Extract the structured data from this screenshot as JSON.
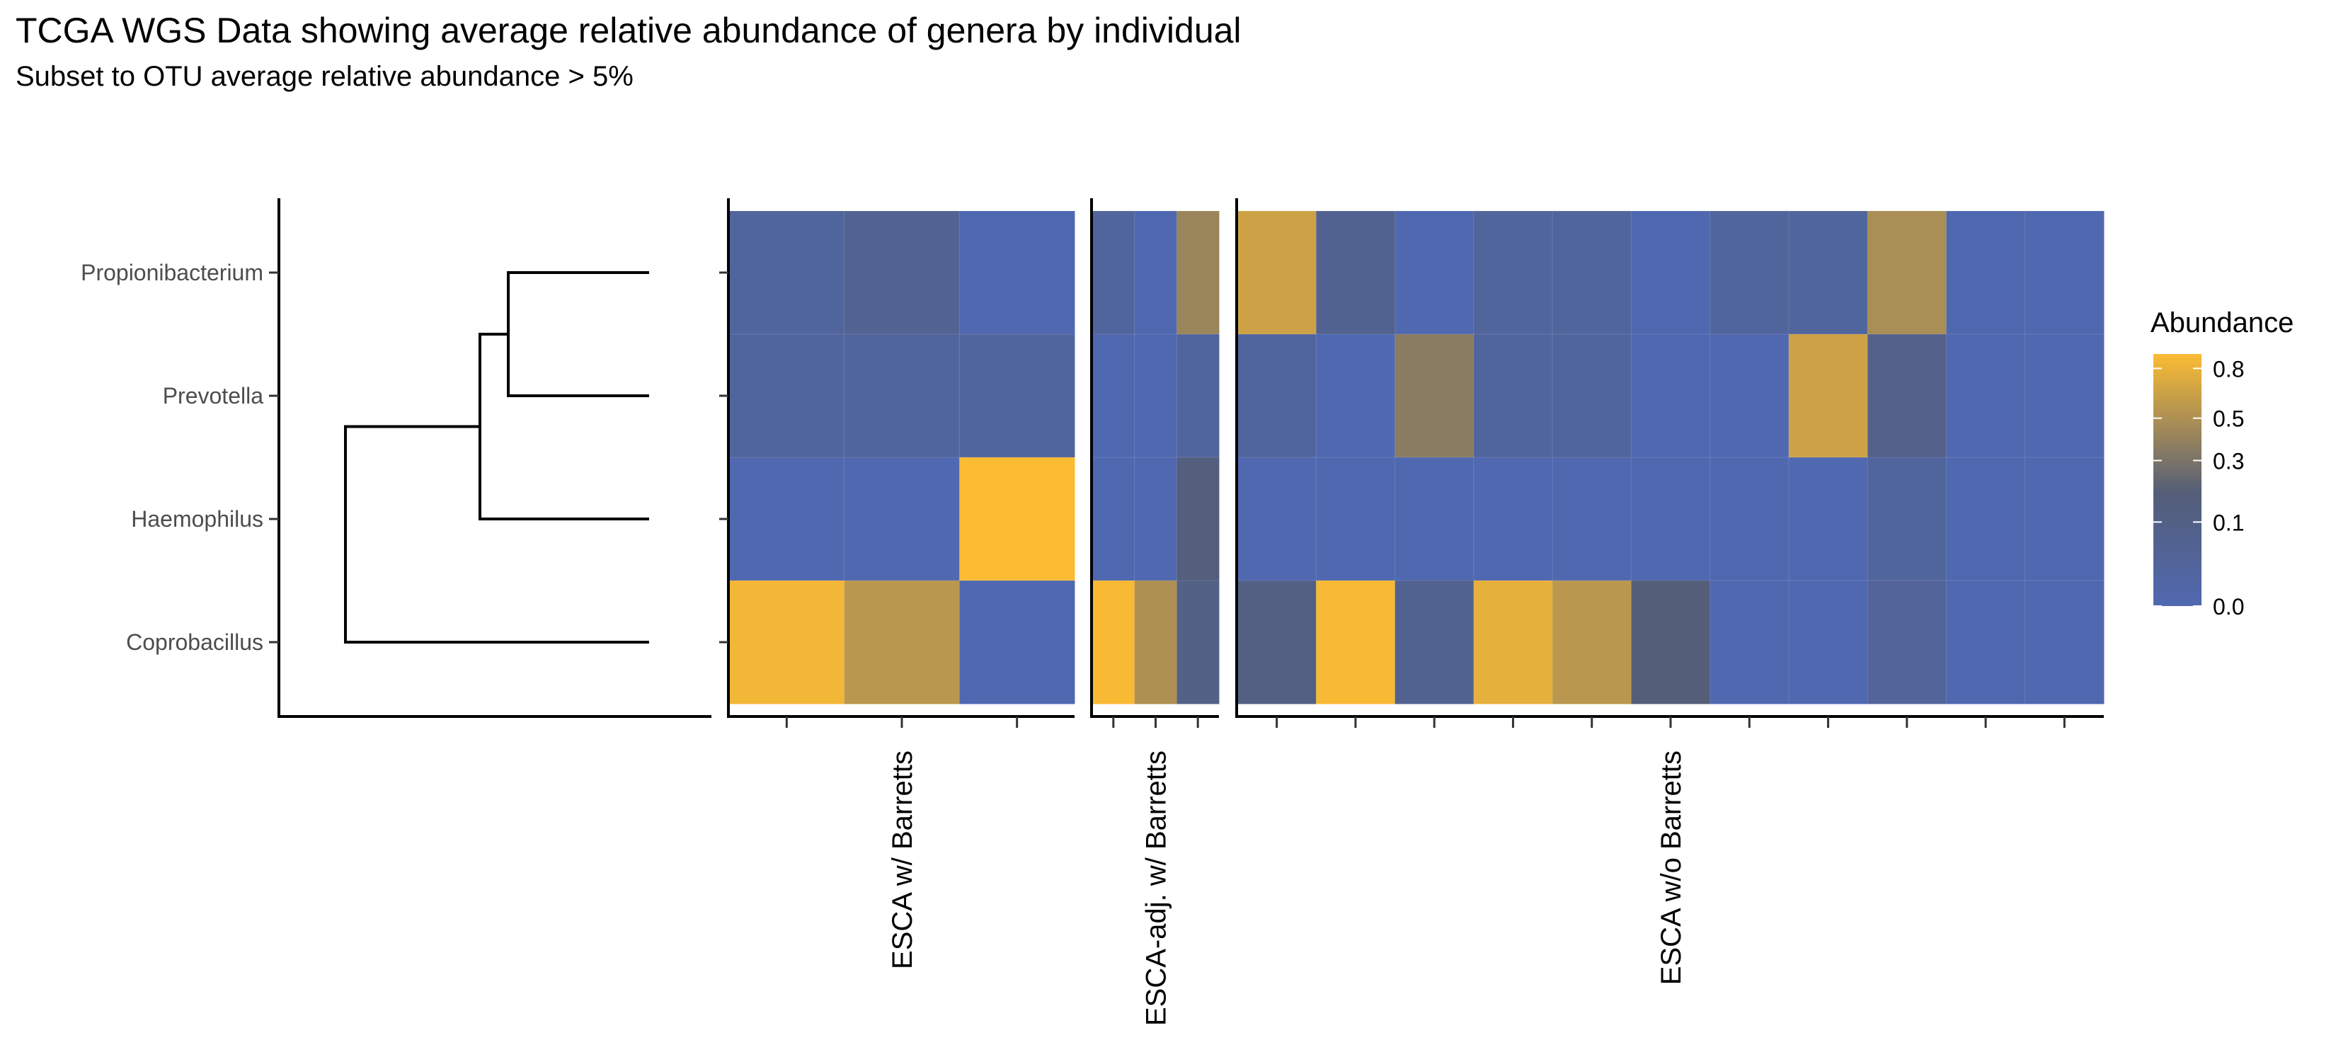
{
  "chart_data": {
    "type": "heatmap",
    "title": "TCGA WGS Data showing average relative abundance of genera by individual",
    "subtitle": "Subset to OTU average relative abundance > 5%",
    "rows": [
      "Propionibacterium",
      "Prevotella",
      "Haemophilus",
      "Coprobacillus"
    ],
    "facets": [
      {
        "label": "ESCA w/ Barretts",
        "values": [
          [
            0.02,
            0.05,
            0.0
          ],
          [
            0.02,
            0.02,
            0.02
          ],
          [
            0.0,
            0.0,
            0.9
          ],
          [
            0.85,
            0.55,
            0.0
          ]
        ]
      },
      {
        "label": "ESCA-adj. w/ Barretts",
        "values": [
          [
            0.02,
            0.0,
            0.42
          ],
          [
            0.0,
            0.0,
            0.02
          ],
          [
            0.0,
            0.0,
            0.15
          ],
          [
            0.88,
            0.5,
            0.1
          ]
        ]
      },
      {
        "label": "ESCA w/o Barretts",
        "values": [
          [
            0.65,
            0.06,
            0.0,
            0.02,
            0.02,
            0.0,
            0.02,
            0.02,
            0.48,
            0.0,
            0.0
          ],
          [
            0.02,
            0.0,
            0.35,
            0.02,
            0.02,
            0.0,
            0.0,
            0.65,
            0.08,
            0.0,
            0.0
          ],
          [
            0.0,
            0.0,
            0.0,
            0.0,
            0.0,
            0.0,
            0.0,
            0.0,
            0.02,
            0.0,
            0.0
          ],
          [
            0.12,
            0.88,
            0.06,
            0.78,
            0.55,
            0.18,
            0.0,
            0.0,
            0.03,
            0.0,
            0.0
          ]
        ]
      }
    ],
    "legend": {
      "title": "Abundance",
      "ticks": [
        "0.8",
        "0.5",
        "0.3",
        "0.1",
        "0.0"
      ],
      "tick_values": [
        0.8,
        0.5,
        0.3,
        0.1,
        0.0
      ],
      "placement": "right",
      "color_low": "#5068b0",
      "color_mid": "#545e78",
      "color_high": "#fbbc33"
    },
    "dendrogram": {
      "merges": [
        {
          "left": "Propionibacterium",
          "right": "Prevotella"
        },
        {
          "left": "cluster-1",
          "right": "Haemophilus"
        },
        {
          "left": "cluster-2",
          "right": "Coprobacillus"
        }
      ]
    },
    "grid": true
  }
}
